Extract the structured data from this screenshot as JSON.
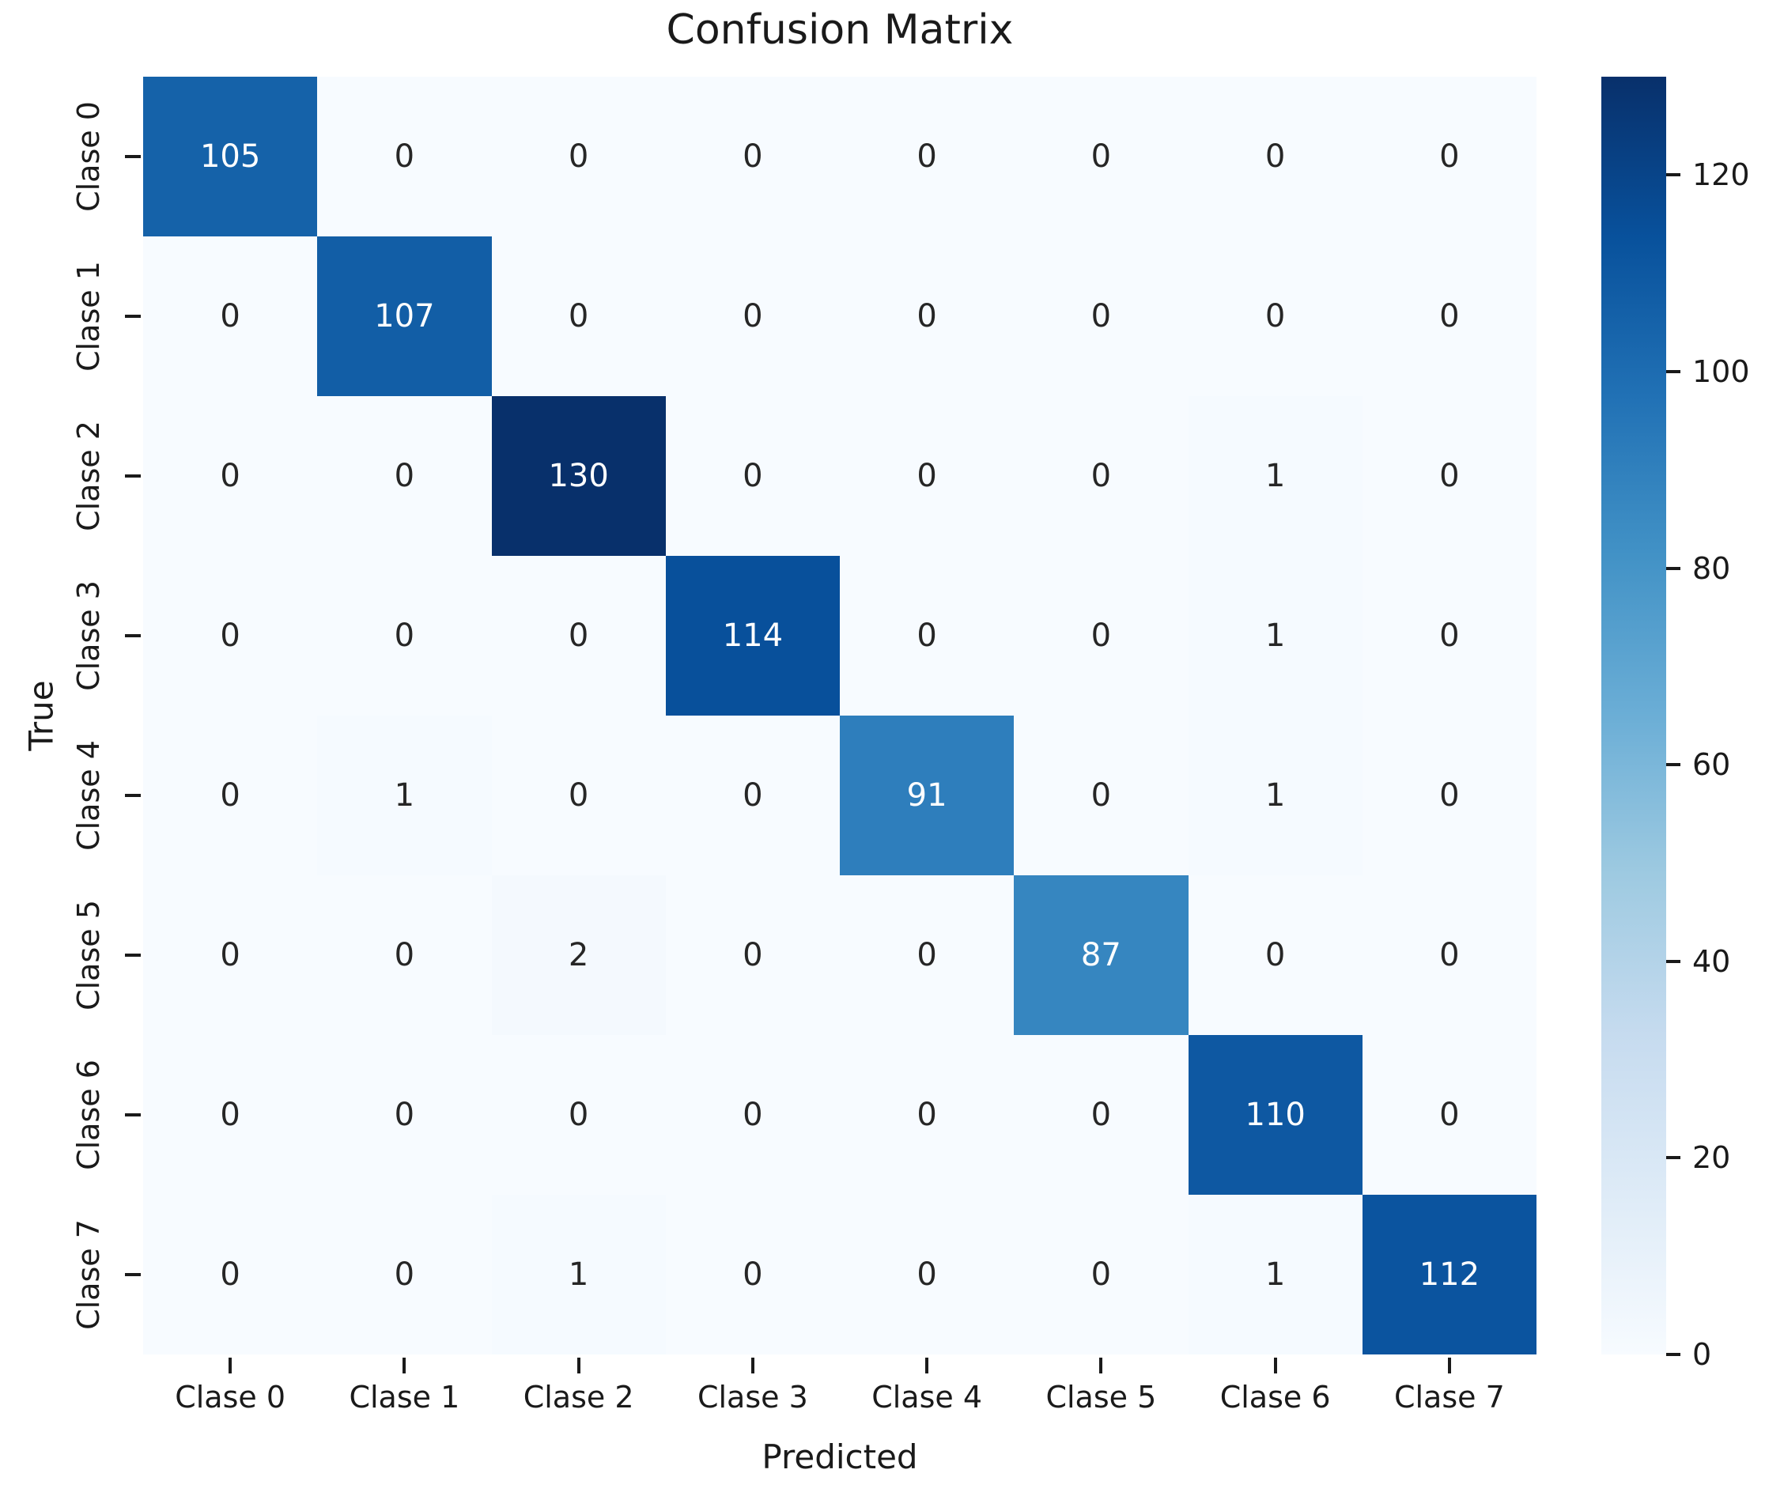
{
  "chart_data": {
    "type": "heatmap",
    "title": "Confusion Matrix",
    "xlabel": "Predicted",
    "ylabel": "True",
    "x_tick_labels": [
      "Clase 0",
      "Clase 1",
      "Clase 2",
      "Clase 3",
      "Clase 4",
      "Clase 5",
      "Clase 6",
      "Clase 7"
    ],
    "y_tick_labels": [
      "Clase 0",
      "Clase 1",
      "Clase 2",
      "Clase 3",
      "Clase 4",
      "Clase 5",
      "Clase 6",
      "Clase 7"
    ],
    "matrix": [
      [
        105,
        0,
        0,
        0,
        0,
        0,
        0,
        0
      ],
      [
        0,
        107,
        0,
        0,
        0,
        0,
        0,
        0
      ],
      [
        0,
        0,
        130,
        0,
        0,
        0,
        1,
        0
      ],
      [
        0,
        0,
        0,
        114,
        0,
        0,
        1,
        0
      ],
      [
        0,
        1,
        0,
        0,
        91,
        0,
        1,
        0
      ],
      [
        0,
        0,
        2,
        0,
        0,
        87,
        0,
        0
      ],
      [
        0,
        0,
        0,
        0,
        0,
        0,
        110,
        0
      ],
      [
        0,
        0,
        1,
        0,
        0,
        0,
        1,
        112
      ]
    ],
    "colorbar": {
      "position": "right",
      "vmin": 0,
      "vmax": 130,
      "ticks": [
        0,
        20,
        40,
        60,
        80,
        100,
        120
      ]
    },
    "colormap_name": "Blues",
    "colormap_anchors": [
      "#f7fbff",
      "#deebf7",
      "#c6dbef",
      "#9ecae1",
      "#6baed6",
      "#4292c6",
      "#2171b5",
      "#08519c",
      "#08306b"
    ],
    "annotation_color_dark": "#262626",
    "annotation_color_light": "#ffffff",
    "axis_text_color": "#1a1a1a",
    "grid": false
  }
}
